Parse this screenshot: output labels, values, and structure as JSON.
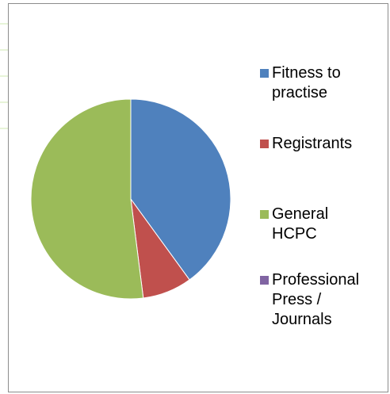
{
  "chart_data": {
    "type": "pie",
    "title": "",
    "categories": [
      "Fitness to\npractise",
      "Registrants",
      "General\nHCPC",
      "Professional\nPress /\nJournals"
    ],
    "values": [
      40,
      8,
      52,
      0
    ],
    "colors": [
      "#4f81bd",
      "#c0504d",
      "#9bbb59",
      "#8064a2"
    ],
    "start_angle_deg": 0,
    "direction": "clockwise",
    "legend_position": "right"
  }
}
